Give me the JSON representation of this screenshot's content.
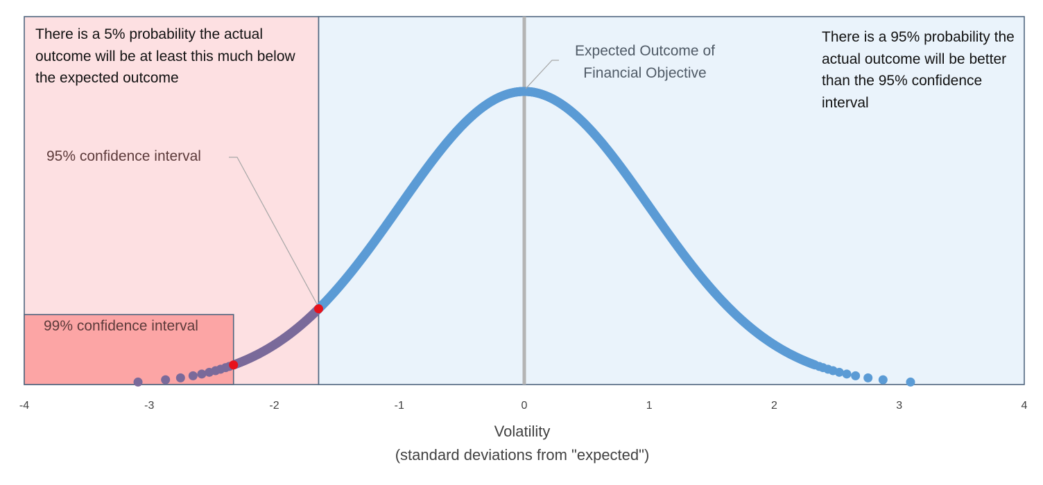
{
  "chart_data": {
    "type": "scatter",
    "title": "",
    "xlabel": "Volatility",
    "xlabel_sub": "(standard deviations from \"expected\")",
    "ylabel": "",
    "xlim": [
      -4,
      4
    ],
    "x_ticks": [
      "-4",
      "-3",
      "-2",
      "-1",
      "0",
      "1",
      "2",
      "3",
      "4"
    ],
    "y_axis_shown": false,
    "grid": false,
    "legend": "none",
    "series": [
      {
        "kind": "normal-density-points",
        "x_range": [
          -3.09,
          3.09
        ],
        "mean": 0,
        "sd": 1,
        "sparse_tail_x": [
          -3.09,
          -2.87,
          -2.75,
          -2.65,
          -2.58,
          -2.52,
          -2.47,
          -2.43,
          -2.39,
          -2.36,
          2.36,
          2.39,
          2.43,
          2.47,
          2.52,
          2.58,
          2.65,
          2.75,
          2.87,
          3.09
        ],
        "color": "#5b9bd5",
        "tail_color": "#7a6a9a"
      }
    ],
    "highlighted_points": [
      {
        "x": -1.645,
        "label": "95% confidence interval"
      },
      {
        "x": -2.326,
        "label": "99% confidence interval"
      }
    ],
    "highlight_color": "#e8121b",
    "regions": [
      {
        "name": "tail-5",
        "x_from": -4,
        "x_to": -1.645,
        "color": "#fde0e2"
      },
      {
        "name": "right-95",
        "x_from": -1.645,
        "x_to": 4,
        "color": "#eaf3fb"
      },
      {
        "name": "tail-1",
        "x_from": -4,
        "x_to": -2.326,
        "color": "#fca5a5"
      }
    ],
    "expected_line": {
      "x": 0,
      "color": "#b4b4b4"
    },
    "annotations": {
      "left_box": "There is a 5% probability the actual outcome will be at least this much below the expected outcome",
      "right_box": "There is a 95% probability the actual outcome will be better than the 95% confidence interval",
      "expected": "Expected Outcome of Financial Objective",
      "ci95": "95% confidence interval",
      "ci99": "99% confidence interval"
    },
    "colors": {
      "border": "#50667f",
      "leader": "#a6a6a6"
    }
  }
}
